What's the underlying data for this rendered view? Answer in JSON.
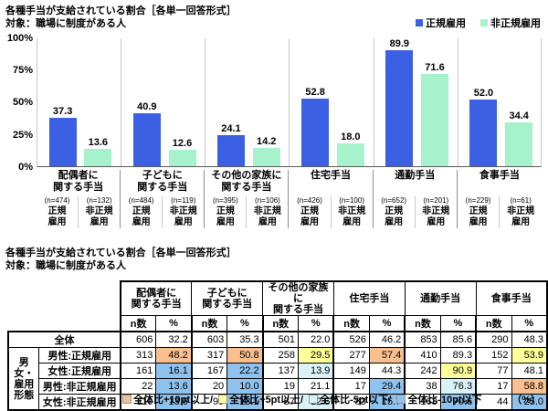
{
  "chart": {
    "title": "各種手当が支給されている割合［各単一回答形式］",
    "subtitle": "対象：職場に制度がある人",
    "y_ticks": [
      "100%",
      "75%",
      "50%",
      "25%",
      "0%"
    ]
  },
  "chart_data": {
    "type": "bar",
    "title": "各種手当が支給されている割合［各単一回答形式］",
    "subtitle": "対象：職場に制度がある人",
    "categories": [
      "配偶者に\n関する手当",
      "子どもに\n関する手当",
      "その他の家族に\n関する手当",
      "住宅手当",
      "通勤手当",
      "食事手当"
    ],
    "series": [
      {
        "name": "正規雇用",
        "axis_label": "正規\n雇用",
        "color": "#3B60E4",
        "values": [
          37.3,
          40.9,
          24.1,
          52.8,
          89.9,
          52.0
        ],
        "n_labels": [
          "(n=474)",
          "(n=484)",
          "(n=395)",
          "(n=426)",
          "(n=652)",
          "(n=229)"
        ]
      },
      {
        "name": "非正規雇用",
        "axis_label": "非正規\n雇用",
        "color": "#A5F2CC",
        "values": [
          13.6,
          12.6,
          14.2,
          18.0,
          71.6,
          34.4
        ],
        "n_labels": [
          "(n=132)",
          "(n=119)",
          "(n=106)",
          "(n=100)",
          "(n=201)",
          "(n=61)"
        ]
      }
    ],
    "ylim": [
      0,
      100
    ],
    "y_tick_interval": 25,
    "grid": false,
    "legend_position": "top-right"
  },
  "table": {
    "title": "各種手当が支給されている割合［各単一回答形式］",
    "subtitle": "対象：職場に制度がある人",
    "col_groups": [
      "配偶者に\n関する手当",
      "子どもに\n関する手当",
      "その他の家族に\n関する手当",
      "住宅手当",
      "通勤手当",
      "食事手当"
    ],
    "sub_headers": [
      "n数",
      "%"
    ],
    "side_label": "男女・\n雇用\n形態",
    "rows": [
      {
        "label": "全体",
        "full_span": true,
        "cells": [
          {
            "n": "606",
            "pct": "32.2",
            "hl": ""
          },
          {
            "n": "603",
            "pct": "35.3",
            "hl": ""
          },
          {
            "n": "501",
            "pct": "22.0",
            "hl": ""
          },
          {
            "n": "526",
            "pct": "46.2",
            "hl": ""
          },
          {
            "n": "853",
            "pct": "85.6",
            "hl": ""
          },
          {
            "n": "290",
            "pct": "48.3",
            "hl": ""
          }
        ]
      },
      {
        "label": "男性:正規雇用",
        "full_span": false,
        "cells": [
          {
            "n": "313",
            "pct": "48.2",
            "hl": "plus10"
          },
          {
            "n": "317",
            "pct": "50.8",
            "hl": "plus10"
          },
          {
            "n": "258",
            "pct": "29.5",
            "hl": "plus5"
          },
          {
            "n": "277",
            "pct": "57.4",
            "hl": "plus10"
          },
          {
            "n": "410",
            "pct": "89.3",
            "hl": ""
          },
          {
            "n": "152",
            "pct": "53.9",
            "hl": "plus5"
          }
        ]
      },
      {
        "label": "女性:正規雇用",
        "full_span": false,
        "cells": [
          {
            "n": "161",
            "pct": "16.1",
            "hl": "minus10"
          },
          {
            "n": "167",
            "pct": "22.2",
            "hl": "minus10"
          },
          {
            "n": "137",
            "pct": "13.9",
            "hl": "minus5"
          },
          {
            "n": "149",
            "pct": "44.3",
            "hl": ""
          },
          {
            "n": "242",
            "pct": "90.9",
            "hl": "plus5"
          },
          {
            "n": "77",
            "pct": "48.1",
            "hl": ""
          }
        ]
      },
      {
        "label": "男性:非正規雇用",
        "full_span": false,
        "cells": [
          {
            "n": "22",
            "pct": "13.6",
            "hl": "minus10"
          },
          {
            "n": "20",
            "pct": "10.0",
            "hl": "minus10"
          },
          {
            "n": "19",
            "pct": "21.1",
            "hl": ""
          },
          {
            "n": "17",
            "pct": "29.4",
            "hl": "minus10"
          },
          {
            "n": "38",
            "pct": "76.3",
            "hl": "minus5"
          },
          {
            "n": "17",
            "pct": "58.8",
            "hl": "plus10"
          }
        ]
      },
      {
        "label": "女性:非正規雇用",
        "full_span": false,
        "cells": [
          {
            "n": "110",
            "pct": "13.6",
            "hl": "minus10"
          },
          {
            "n": "99",
            "pct": "13.1",
            "hl": "minus10"
          },
          {
            "n": "87",
            "pct": "12.6",
            "hl": "minus5"
          },
          {
            "n": "83",
            "pct": "15.7",
            "hl": "minus10"
          },
          {
            "n": "163",
            "pct": "70.6",
            "hl": "minus10"
          },
          {
            "n": "44",
            "pct": "25.0",
            "hl": "minus10"
          }
        ]
      }
    ],
    "highlight_colors": {
      "plus10": "#FABF8F",
      "plus5": "#FFFF99",
      "minus5": "#D9F2F8",
      "minus10": "#8FC2EE"
    },
    "legend": [
      {
        "key": "plus10",
        "label": "全体比+10pt以上/"
      },
      {
        "key": "plus5",
        "label": "全体比+5pt以上/"
      },
      {
        "key": "minus5",
        "label": "全体比-5pt以下/"
      },
      {
        "key": "minus10",
        "label": "全体比-10pt以下"
      }
    ],
    "unit_note": "（%）"
  }
}
